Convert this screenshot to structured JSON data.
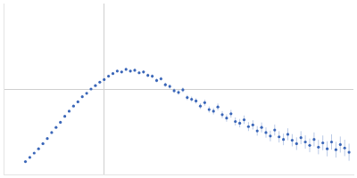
{
  "chart_data": {
    "type": "scatter",
    "marker": "circle",
    "grid": true,
    "tick_labels": false,
    "color": "#3a66b8",
    "xlim": [
      0,
      4
    ],
    "xticks": [
      1.15
    ],
    "ylim": [
      0,
      2
    ],
    "yticks": [
      1
    ],
    "x": [
      0.25,
      0.3,
      0.35,
      0.4,
      0.45,
      0.5,
      0.55,
      0.6,
      0.65,
      0.7,
      0.75,
      0.8,
      0.85,
      0.9,
      0.95,
      1.0,
      1.05,
      1.1,
      1.15,
      1.2,
      1.25,
      1.3,
      1.35,
      1.4,
      1.45,
      1.5,
      1.55,
      1.6,
      1.65,
      1.7,
      1.75,
      1.8,
      1.85,
      1.9,
      1.95,
      2.0,
      2.05,
      2.1,
      2.15,
      2.2,
      2.25,
      2.3,
      2.35,
      2.4,
      2.45,
      2.5,
      2.55,
      2.6,
      2.65,
      2.7,
      2.75,
      2.8,
      2.85,
      2.9,
      2.95,
      3.0,
      3.05,
      3.1,
      3.15,
      3.2,
      3.25,
      3.3,
      3.35,
      3.4,
      3.45,
      3.5,
      3.55,
      3.6,
      3.65,
      3.7,
      3.75,
      3.8,
      3.85,
      3.9,
      3.95
    ],
    "values": [
      0.15,
      0.2,
      0.25,
      0.3,
      0.36,
      0.42,
      0.49,
      0.55,
      0.61,
      0.68,
      0.74,
      0.8,
      0.85,
      0.91,
      0.95,
      1.0,
      1.04,
      1.08,
      1.11,
      1.15,
      1.18,
      1.21,
      1.2,
      1.23,
      1.21,
      1.22,
      1.19,
      1.2,
      1.16,
      1.15,
      1.1,
      1.12,
      1.05,
      1.03,
      0.98,
      0.96,
      0.99,
      0.9,
      0.88,
      0.86,
      0.8,
      0.84,
      0.76,
      0.74,
      0.79,
      0.7,
      0.66,
      0.71,
      0.62,
      0.6,
      0.64,
      0.56,
      0.58,
      0.51,
      0.55,
      0.49,
      0.45,
      0.52,
      0.44,
      0.41,
      0.47,
      0.4,
      0.36,
      0.43,
      0.38,
      0.34,
      0.41,
      0.32,
      0.37,
      0.3,
      0.38,
      0.29,
      0.35,
      0.31,
      0.26
    ],
    "errors": [
      0.005,
      0.005,
      0.005,
      0.005,
      0.005,
      0.005,
      0.005,
      0.006,
      0.006,
      0.006,
      0.007,
      0.007,
      0.008,
      0.008,
      0.009,
      0.01,
      0.01,
      0.01,
      0.011,
      0.012,
      0.012,
      0.013,
      0.014,
      0.015,
      0.016,
      0.017,
      0.018,
      0.019,
      0.02,
      0.021,
      0.022,
      0.023,
      0.024,
      0.025,
      0.026,
      0.027,
      0.028,
      0.03,
      0.031,
      0.032,
      0.033,
      0.035,
      0.036,
      0.038,
      0.04,
      0.041,
      0.043,
      0.045,
      0.047,
      0.049,
      0.05,
      0.052,
      0.054,
      0.056,
      0.058,
      0.06,
      0.062,
      0.064,
      0.066,
      0.068,
      0.07,
      0.072,
      0.074,
      0.076,
      0.078,
      0.08,
      0.082,
      0.084,
      0.086,
      0.088,
      0.09,
      0.092,
      0.094,
      0.096,
      0.1
    ]
  }
}
